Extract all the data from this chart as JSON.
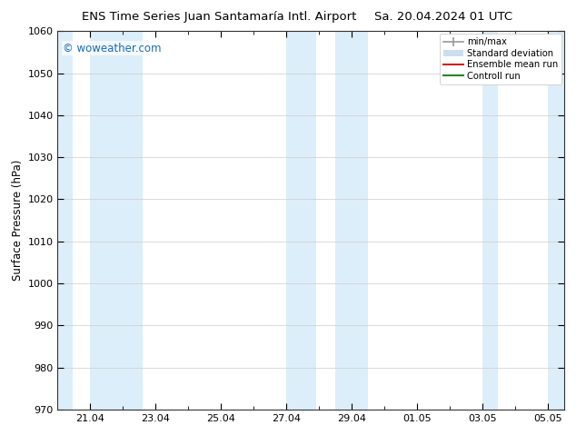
{
  "title_left": "ENS Time Series Juan Santamaría Intl. Airport",
  "title_right": "Sa. 20.04.2024 01 UTC",
  "ylabel": "Surface Pressure (hPa)",
  "ylim": [
    970,
    1060
  ],
  "yticks": [
    970,
    980,
    990,
    1000,
    1010,
    1020,
    1030,
    1040,
    1050,
    1060
  ],
  "watermark": "© woweather.com",
  "watermark_color": "#1a6bb5",
  "bg_color": "#ffffff",
  "plot_bg_color": "#ffffff",
  "band_color": "#dceef9",
  "legend_items": [
    {
      "label": "min/max",
      "color": "#aaaaaa",
      "lw": 1.2
    },
    {
      "label": "Standard deviation",
      "color": "#ccddf0",
      "lw": 8
    },
    {
      "label": "Ensemble mean run",
      "color": "#cc2222",
      "lw": 1.5
    },
    {
      "label": "Controll run",
      "color": "#228822",
      "lw": 1.5
    }
  ],
  "xtick_labels": [
    "21.04",
    "23.04",
    "25.04",
    "27.04",
    "29.04",
    "01.05",
    "03.05",
    "05.05"
  ],
  "xtick_positions": [
    1,
    3,
    5,
    7,
    9,
    11,
    13,
    15
  ],
  "xlim": [
    0,
    15.5
  ],
  "band_ranges": [
    [
      0.0,
      0.45
    ],
    [
      1.0,
      2.6
    ],
    [
      7.0,
      7.9
    ],
    [
      8.5,
      9.5
    ],
    [
      13.0,
      13.45
    ],
    [
      15.0,
      15.5
    ]
  ],
  "title_fontsize": 9.5,
  "label_fontsize": 8.5,
  "tick_fontsize": 8,
  "watermark_fontsize": 8.5
}
